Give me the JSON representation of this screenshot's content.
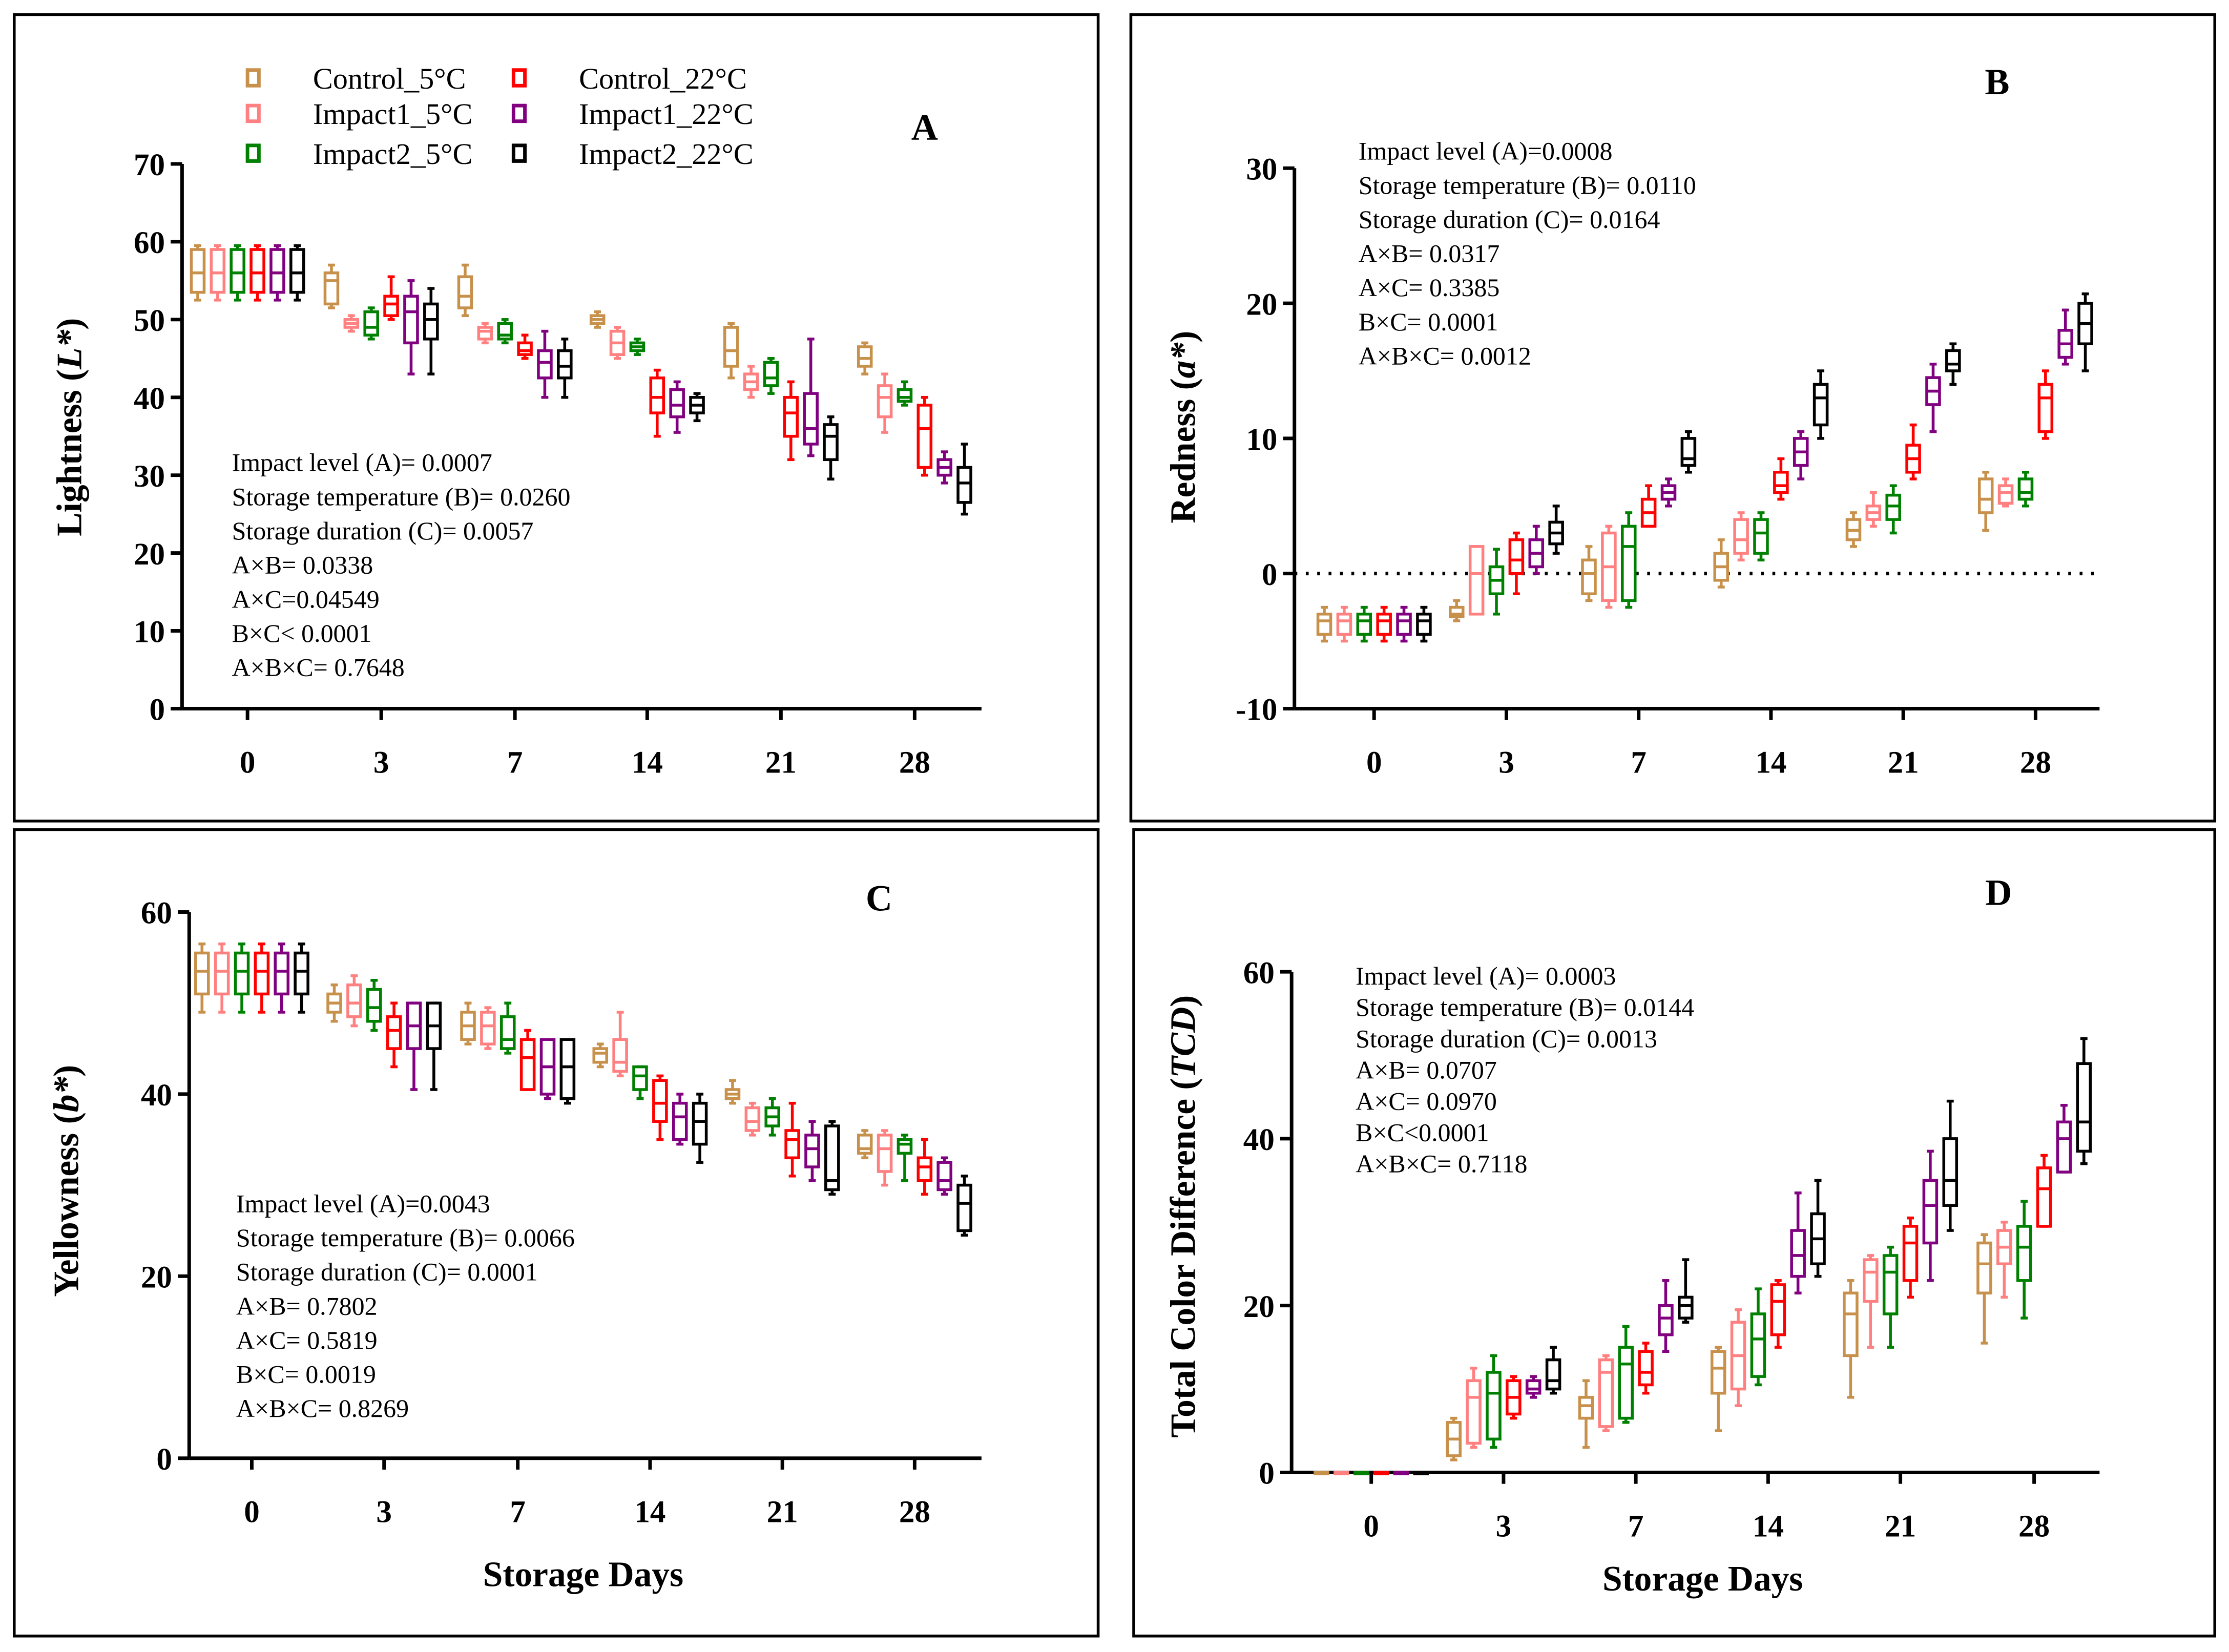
{
  "legend": [
    {
      "name": "Control_5°C",
      "color": "#c8914b"
    },
    {
      "name": "Impact1_5°C",
      "color": "#ff8080"
    },
    {
      "name": "Impact2_5°C",
      "color": "#008000"
    },
    {
      "name": "Control_22°C",
      "color": "#ff0000"
    },
    {
      "name": "Impact1_22°C",
      "color": "#800080"
    },
    {
      "name": "Impact2_22°C",
      "color": "#000000"
    }
  ],
  "chart_data": [
    {
      "panel": "A",
      "type": "box",
      "ylabel": "Lightness (L*)",
      "ylabel_italic": "L*",
      "xlabel": "",
      "categories": [
        "0",
        "3",
        "7",
        "14",
        "21",
        "28"
      ],
      "ylim": [
        0,
        70
      ],
      "yticks": [
        0,
        10,
        20,
        30,
        40,
        50,
        60,
        70
      ],
      "stats": [
        "Impact level (A)= 0.0007",
        "Storage temperature (B)= 0.0260",
        "Storage duration (C)= 0.0057",
        "A×B= 0.0338",
        "A×C=0.04549",
        "B×C< 0.0001",
        "A×B×C= 0.7648"
      ],
      "series_format": "[min, q1, median, q3, max] per day",
      "series": [
        [
          [
            52.5,
            53.5,
            56,
            59,
            59.5
          ],
          [
            51.5,
            52,
            55,
            56,
            57
          ],
          [
            50.5,
            51.5,
            53,
            55.5,
            57
          ],
          [
            49,
            49.5,
            50,
            50.5,
            51
          ],
          [
            42.5,
            44,
            46,
            49,
            49.5
          ],
          [
            43,
            44,
            45,
            46.5,
            47
          ]
        ],
        [
          [
            52.5,
            53.5,
            56,
            59,
            59.5
          ],
          [
            48.5,
            49,
            49.5,
            50,
            50.5
          ],
          [
            47,
            47.5,
            48.5,
            49,
            49.5
          ],
          [
            45,
            45.5,
            47,
            48.5,
            49
          ],
          [
            40,
            41,
            42,
            43,
            44
          ],
          [
            35.5,
            37.5,
            40,
            41.5,
            43
          ]
        ],
        [
          [
            52.5,
            53.5,
            56,
            59,
            59.5
          ],
          [
            47.5,
            48,
            49,
            51,
            51.5
          ],
          [
            47,
            47.5,
            48,
            49.5,
            50
          ],
          [
            45.5,
            46,
            46.5,
            47,
            47.5
          ],
          [
            40.5,
            41.5,
            42.5,
            44.5,
            45
          ],
          [
            39,
            39.5,
            40,
            41,
            42
          ]
        ],
        [
          [
            52.5,
            53.5,
            56,
            59,
            59.5
          ],
          [
            50,
            50.5,
            52,
            53,
            55.5
          ],
          [
            45,
            45.5,
            46,
            47,
            48
          ],
          [
            35,
            38,
            40,
            42.5,
            43.5
          ],
          [
            32,
            35,
            38,
            40,
            42
          ],
          [
            30,
            31,
            36,
            39,
            40
          ]
        ],
        [
          [
            52.5,
            53.5,
            56,
            59,
            59.5
          ],
          [
            43,
            47,
            51,
            53,
            55
          ],
          [
            40,
            42.5,
            44.5,
            46,
            48.5
          ],
          [
            35.5,
            37.5,
            39,
            41,
            42
          ],
          [
            32.5,
            34,
            36,
            40.5,
            47.5
          ],
          [
            29,
            30,
            31,
            32,
            33
          ]
        ],
        [
          [
            52.5,
            53.5,
            56,
            59,
            59.5
          ],
          [
            43,
            47.5,
            50,
            52,
            54
          ],
          [
            40,
            42.5,
            44,
            46,
            47.5
          ],
          [
            37,
            38,
            39,
            40,
            40.5
          ],
          [
            29.5,
            32,
            35,
            36.5,
            37.5
          ],
          [
            25,
            26.5,
            29,
            31,
            34
          ]
        ]
      ]
    },
    {
      "panel": "B",
      "type": "box",
      "ylabel": "Redness (a*)",
      "ylabel_italic": "a*",
      "xlabel": "",
      "categories": [
        "0",
        "3",
        "7",
        "14",
        "21",
        "28"
      ],
      "ylim": [
        -10,
        30
      ],
      "yticks": [
        -10,
        0,
        10,
        20,
        30
      ],
      "reference_line": 0,
      "stats": [
        "Impact level (A)=0.0008",
        "Storage temperature (B)= 0.0110",
        "Storage duration (C)= 0.0164",
        "A×B= 0.0317",
        "A×C= 0.3385",
        "B×C= 0.0001",
        "A×B×C= 0.0012"
      ],
      "series": [
        [
          [
            -5,
            -4.5,
            -3.5,
            -3,
            -2.5
          ],
          [
            -3.5,
            -3.2,
            -3,
            -2.5,
            -2
          ],
          [
            -2,
            -1.5,
            0,
            1,
            2
          ],
          [
            -1,
            -0.5,
            0.5,
            1.5,
            2.5
          ],
          [
            2,
            2.5,
            3.2,
            4,
            4.5
          ],
          [
            3.2,
            4.5,
            5.5,
            7,
            7.5
          ]
        ],
        [
          [
            -5,
            -4.5,
            -3.5,
            -3,
            -2.5
          ],
          [
            -3,
            -3,
            0,
            2,
            2
          ],
          [
            -2.5,
            -2,
            0.5,
            3,
            3.5
          ],
          [
            1,
            1.5,
            2.5,
            4,
            4.5
          ],
          [
            3.5,
            4,
            4.5,
            5,
            6
          ],
          [
            5,
            5.2,
            6,
            6.5,
            7
          ]
        ],
        [
          [
            -5,
            -4.5,
            -3.5,
            -3,
            -2.5
          ],
          [
            -3,
            -1.5,
            -0.5,
            0.5,
            1.8
          ],
          [
            -2.5,
            -2,
            2,
            3.5,
            4.5
          ],
          [
            1,
            1.5,
            3,
            4,
            4.5
          ],
          [
            3,
            4,
            5,
            5.8,
            6.5
          ],
          [
            5,
            5.5,
            6,
            7,
            7.5
          ]
        ],
        [
          [
            -5,
            -4.5,
            -3.5,
            -3,
            -2.5
          ],
          [
            -1.5,
            0,
            1,
            2.5,
            3
          ],
          [
            3.5,
            3.5,
            4.5,
            5.5,
            6.5
          ],
          [
            5.5,
            6,
            6.5,
            7.5,
            8.5
          ],
          [
            7,
            7.5,
            8.5,
            9.5,
            11
          ],
          [
            10,
            10.5,
            13,
            14,
            15
          ]
        ],
        [
          [
            -5,
            -4.5,
            -3.5,
            -3,
            -2.5
          ],
          [
            0,
            0.5,
            1.5,
            2.5,
            3.5
          ],
          [
            5,
            5.5,
            6,
            6.5,
            7
          ],
          [
            7,
            8,
            9,
            10,
            10.5
          ],
          [
            10.5,
            12.5,
            13.5,
            14.5,
            15.5
          ],
          [
            15.5,
            16,
            17,
            18,
            19.5
          ]
        ],
        [
          [
            -5,
            -4.5,
            -3.5,
            -3,
            -2.5
          ],
          [
            1.5,
            2.2,
            3,
            3.8,
            5
          ],
          [
            7.5,
            8,
            8.5,
            10,
            10.5
          ],
          [
            10,
            11,
            13,
            14,
            15
          ],
          [
            14,
            15,
            15.5,
            16.5,
            17
          ],
          [
            15,
            17,
            18.5,
            20,
            20.7
          ]
        ]
      ]
    },
    {
      "panel": "C",
      "type": "box",
      "ylabel": "Yellowness (b*)",
      "ylabel_italic": "b*",
      "xlabel": "Storage Days",
      "categories": [
        "0",
        "3",
        "7",
        "14",
        "21",
        "28"
      ],
      "ylim": [
        0,
        60
      ],
      "yticks": [
        0,
        20,
        40,
        60
      ],
      "stats": [
        "Impact level (A)=0.0043",
        "Storage temperature (B)= 0.0066",
        "Storage duration (C)= 0.0001",
        "A×B= 0.7802",
        "A×C= 0.5819",
        "B×C= 0.0019",
        "A×B×C= 0.8269"
      ],
      "series": [
        [
          [
            49,
            51,
            53.5,
            55.5,
            56.5
          ],
          [
            48,
            49,
            50,
            51,
            52
          ],
          [
            45.5,
            46,
            47.5,
            49,
            50
          ],
          [
            43,
            43.5,
            44.5,
            45,
            45.5
          ],
          [
            39,
            39.5,
            40,
            40.5,
            41.5
          ],
          [
            33,
            33.5,
            34,
            35.5,
            36
          ]
        ],
        [
          [
            49,
            51,
            53.5,
            55.5,
            56.5
          ],
          [
            47.5,
            48.5,
            50,
            52,
            53
          ],
          [
            45,
            45.5,
            47.5,
            49,
            49.5
          ],
          [
            42,
            42.5,
            43.5,
            46,
            49
          ],
          [
            35.5,
            36,
            37,
            38.5,
            39
          ],
          [
            30,
            31.5,
            34,
            35.5,
            36
          ]
        ],
        [
          [
            49,
            51,
            53.5,
            55.5,
            56.5
          ],
          [
            47,
            48,
            49.5,
            51.5,
            52.5
          ],
          [
            44.5,
            45,
            46,
            48.5,
            50
          ],
          [
            39.5,
            40.5,
            42,
            43,
            43
          ],
          [
            35.5,
            36.5,
            37.5,
            38.5,
            39.5
          ],
          [
            30.5,
            33.5,
            34.5,
            35,
            35.5
          ]
        ],
        [
          [
            49,
            51,
            53.5,
            55.5,
            56.5
          ],
          [
            43,
            45,
            47,
            48.5,
            50
          ],
          [
            40.5,
            40.5,
            44,
            46,
            47
          ],
          [
            35,
            37,
            39,
            41.5,
            42
          ],
          [
            31,
            33,
            35,
            36,
            39
          ],
          [
            29,
            30.5,
            32,
            33,
            35
          ]
        ],
        [
          [
            49,
            51,
            53.5,
            55.5,
            56.5
          ],
          [
            40.5,
            45,
            47.5,
            50,
            50
          ],
          [
            39.5,
            40,
            43,
            46,
            46
          ],
          [
            34.5,
            35,
            37.5,
            39,
            40
          ],
          [
            30.5,
            32,
            34,
            35.5,
            37
          ],
          [
            29,
            29.5,
            30.5,
            32.5,
            33
          ]
        ],
        [
          [
            49,
            51,
            53.5,
            55.5,
            56.5
          ],
          [
            40.5,
            45,
            47.5,
            50,
            50
          ],
          [
            39,
            39.5,
            43,
            46,
            46
          ],
          [
            32.5,
            34.5,
            37,
            39,
            40
          ],
          [
            29,
            29.5,
            30.5,
            36.5,
            37
          ],
          [
            24.5,
            25,
            28,
            30,
            31
          ]
        ]
      ]
    },
    {
      "panel": "D",
      "type": "box",
      "ylabel": "Total Color Difference (TCD)",
      "ylabel_italic": "TCD",
      "xlabel": "Storage Days",
      "categories": [
        "0",
        "3",
        "7",
        "14",
        "21",
        "28"
      ],
      "ylim": [
        0,
        60
      ],
      "yticks": [
        0,
        20,
        40,
        60
      ],
      "stats": [
        "Impact level (A)= 0.0003",
        "Storage temperature (B)= 0.0144",
        "Storage duration (C)= 0.0013",
        "A×B= 0.0707",
        "A×C= 0.0970",
        "B×C<0.0001",
        "A×B×C= 0.7118"
      ],
      "series": [
        [
          [
            0,
            0,
            0,
            0,
            0
          ],
          [
            1.5,
            2,
            4,
            6,
            6.5
          ],
          [
            3,
            6.5,
            8,
            9,
            11
          ],
          [
            5,
            9.5,
            12.5,
            14.5,
            15
          ],
          [
            9,
            14,
            19,
            21.5,
            23
          ],
          [
            15.5,
            21.5,
            25,
            27.5,
            28.5
          ]
        ],
        [
          [
            0,
            0,
            0,
            0,
            0
          ],
          [
            3,
            3.5,
            9,
            11,
            12.5
          ],
          [
            5,
            5.5,
            12,
            13.5,
            14
          ],
          [
            8,
            10,
            14,
            18,
            19.5
          ],
          [
            15,
            20.5,
            24,
            25.5,
            26
          ],
          [
            21,
            25,
            27,
            29,
            30
          ]
        ],
        [
          [
            0,
            0,
            0,
            0,
            0
          ],
          [
            3,
            4,
            9.5,
            12,
            14
          ],
          [
            6,
            6.5,
            13,
            15,
            17.5
          ],
          [
            10.5,
            11.5,
            16,
            19,
            22
          ],
          [
            15,
            19,
            24,
            26,
            27
          ],
          [
            18.5,
            23,
            27,
            29.5,
            32.5
          ]
        ],
        [
          [
            0,
            0,
            0,
            0,
            0
          ],
          [
            6.5,
            7,
            9,
            11,
            11.5
          ],
          [
            9.5,
            10.5,
            12,
            14.5,
            15.5
          ],
          [
            15,
            16.5,
            20.5,
            22.5,
            23
          ],
          [
            21,
            23,
            27.5,
            29.5,
            30.5
          ],
          [
            29.5,
            29.5,
            34,
            36.5,
            38
          ]
        ],
        [
          [
            0,
            0,
            0,
            0,
            0
          ],
          [
            9,
            9.5,
            10,
            11,
            11.5
          ],
          [
            14.5,
            16.5,
            18.5,
            20,
            23
          ],
          [
            21.5,
            23.5,
            26,
            29,
            33.5
          ],
          [
            23,
            27.5,
            32,
            35,
            38.5
          ],
          [
            36,
            36,
            40,
            42,
            44
          ]
        ],
        [
          [
            0,
            0,
            0,
            0,
            0
          ],
          [
            9.5,
            10,
            11,
            13.5,
            15
          ],
          [
            18,
            18.5,
            20,
            21,
            25.5
          ],
          [
            23.5,
            25,
            28,
            31,
            35
          ],
          [
            29,
            32,
            35,
            40,
            44.5
          ],
          [
            37,
            38.5,
            42,
            49,
            52
          ]
        ]
      ]
    }
  ]
}
